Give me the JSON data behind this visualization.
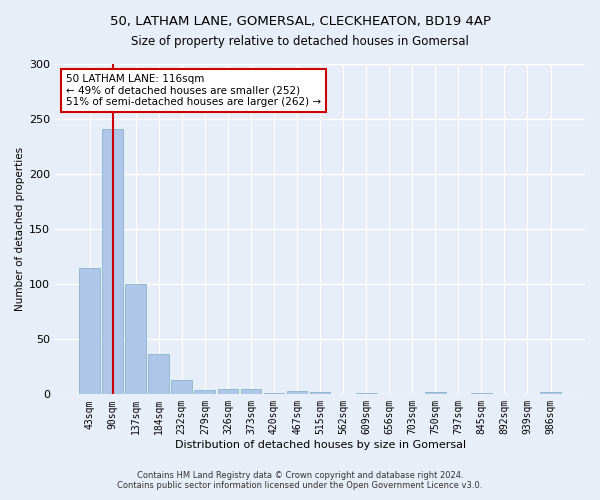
{
  "title1": "50, LATHAM LANE, GOMERSAL, CLECKHEATON, BD19 4AP",
  "title2": "Size of property relative to detached houses in Gomersal",
  "xlabel": "Distribution of detached houses by size in Gomersal",
  "ylabel": "Number of detached properties",
  "categories": [
    "43sqm",
    "90sqm",
    "137sqm",
    "184sqm",
    "232sqm",
    "279sqm",
    "326sqm",
    "373sqm",
    "420sqm",
    "467sqm",
    "515sqm",
    "562sqm",
    "609sqm",
    "656sqm",
    "703sqm",
    "750sqm",
    "797sqm",
    "845sqm",
    "892sqm",
    "939sqm",
    "986sqm"
  ],
  "values": [
    115,
    241,
    100,
    37,
    13,
    4,
    5,
    5,
    1,
    3,
    2,
    0,
    1,
    0,
    0,
    2,
    0,
    1,
    0,
    0,
    2
  ],
  "bar_color": "#aec6e8",
  "bar_edge_color": "#7aafc8",
  "vline_x_bar": 1,
  "vline_color": "#cc0000",
  "annotation_title": "50 LATHAM LANE: 116sqm",
  "annotation_line1": "← 49% of detached houses are smaller (252)",
  "annotation_line2": "51% of semi-detached houses are larger (262) →",
  "annotation_box_color": "#ffffff",
  "annotation_box_edge_color": "#cc0000",
  "ylim": [
    0,
    300
  ],
  "yticks": [
    0,
    50,
    100,
    150,
    200,
    250,
    300
  ],
  "footer1": "Contains HM Land Registry data © Crown copyright and database right 2024.",
  "footer2": "Contains public sector information licensed under the Open Government Licence v3.0.",
  "background_color": "#e8eef8",
  "grid_color": "#ffffff"
}
